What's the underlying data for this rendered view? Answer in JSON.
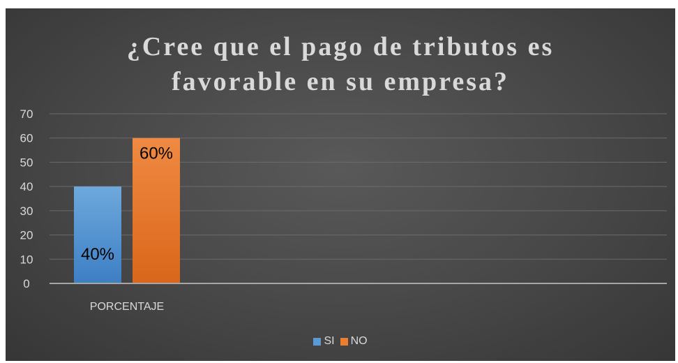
{
  "chart_data": {
    "type": "bar",
    "title": [
      "¿Cree que el pago de tributos es",
      "favorable en su empresa?"
    ],
    "categories": [
      "PORCENTAJE"
    ],
    "series": [
      {
        "name": "SI",
        "values": [
          40
        ],
        "label": "40%",
        "color": "#5b9bd5"
      },
      {
        "name": "NO",
        "values": [
          60
        ],
        "label": "60%",
        "color": "#ed7d31"
      }
    ],
    "ylim": [
      0,
      70
    ],
    "yticks": [
      "0",
      "10",
      "20",
      "30",
      "40",
      "50",
      "60",
      "70"
    ],
    "grid": true,
    "legend": "bottom"
  }
}
